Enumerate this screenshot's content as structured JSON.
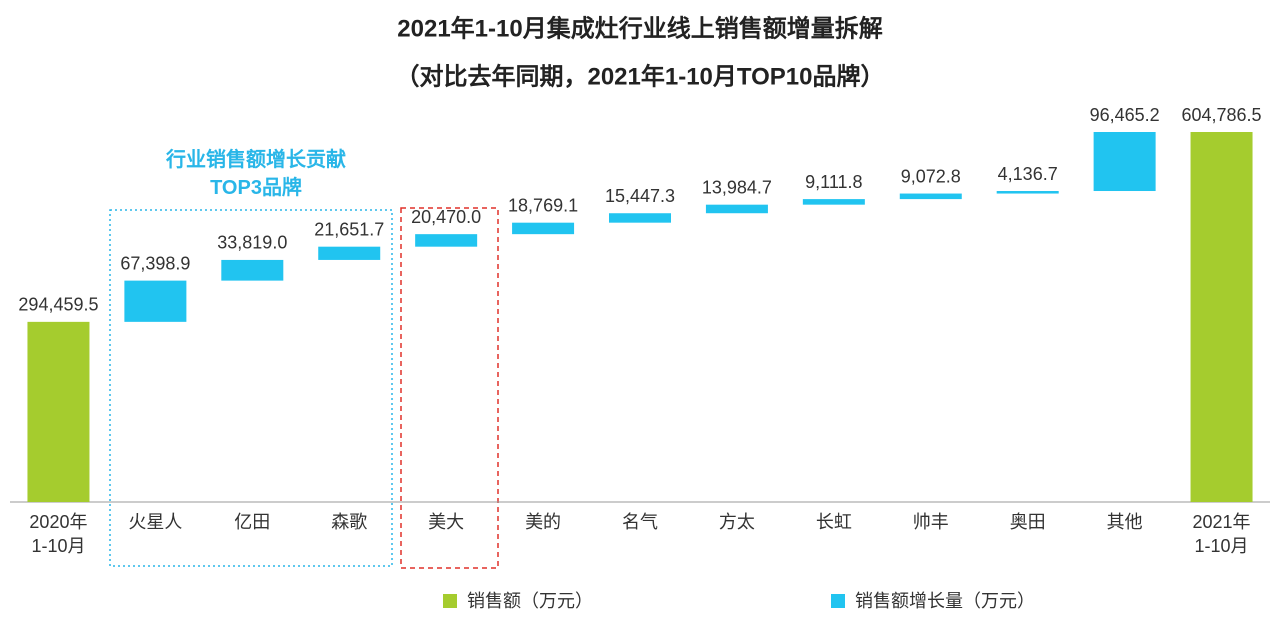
{
  "chart_data": {
    "type": "waterfall",
    "title": "2021年1-10月集成灶行业线上销售额增量拆解",
    "subtitle": "（对比去年同期，2021年1-10月TOP10品牌）",
    "categories": [
      "2020年\n1-10月",
      "火星人",
      "亿田",
      "森歌",
      "美大",
      "美的",
      "名气",
      "方太",
      "长虹",
      "帅丰",
      "奥田",
      "其他",
      "2021年\n1-10月"
    ],
    "series": [
      {
        "name": "销售额（万元）",
        "color": "#a5cc2e",
        "values": [
          294459.5,
          null,
          null,
          null,
          null,
          null,
          null,
          null,
          null,
          null,
          null,
          null,
          604786.5
        ],
        "value_labels": [
          "294,459.5",
          null,
          null,
          null,
          null,
          null,
          null,
          null,
          null,
          null,
          null,
          null,
          "604,786.5"
        ]
      },
      {
        "name": "销售额增长量（万元）",
        "color": "#21c4f0",
        "values": [
          null,
          67398.9,
          33819.0,
          21651.7,
          20470.0,
          18769.1,
          15447.3,
          13984.7,
          9111.8,
          9072.8,
          4136.7,
          96465.2,
          null
        ],
        "value_labels": [
          null,
          "67,398.9",
          "33,819.0",
          "21,651.7",
          "20,470.0",
          "18,769.1",
          "15,447.3",
          "13,984.7",
          "9,111.8",
          "9,072.8",
          "4,136.7",
          "96,465.2",
          null
        ]
      }
    ],
    "annotations": [
      "行业销售额增长贡献\nTOP3品牌"
    ]
  }
}
